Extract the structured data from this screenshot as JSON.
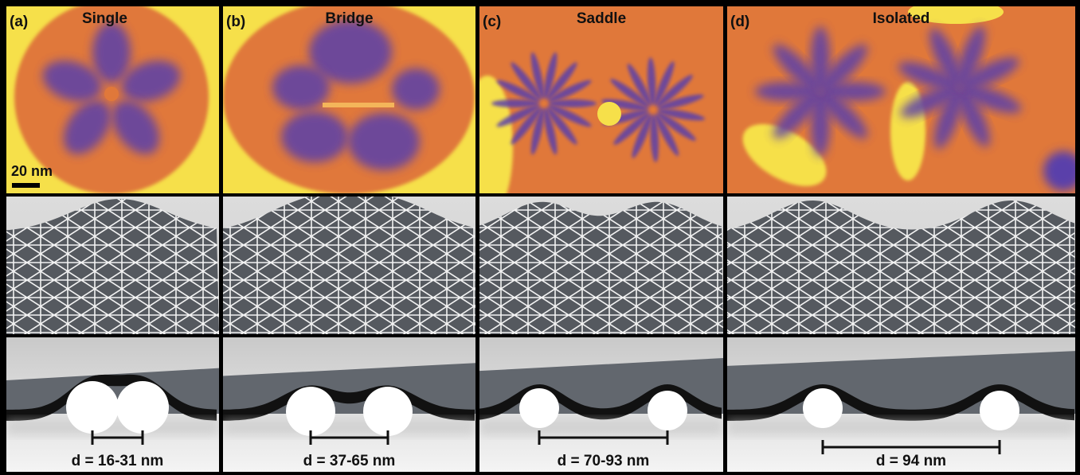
{
  "panels": [
    {
      "label": "(a)",
      "title": "Single",
      "distance": "d = 16-31 nm"
    },
    {
      "label": "(b)",
      "title": "Bridge",
      "distance": "d = 37-65 nm"
    },
    {
      "label": "(c)",
      "title": "Saddle",
      "distance": "d = 70-93 nm"
    },
    {
      "label": "(d)",
      "title": "Isolated",
      "distance": "d = 94 nm"
    }
  ],
  "scale_bar": "20 nm"
}
